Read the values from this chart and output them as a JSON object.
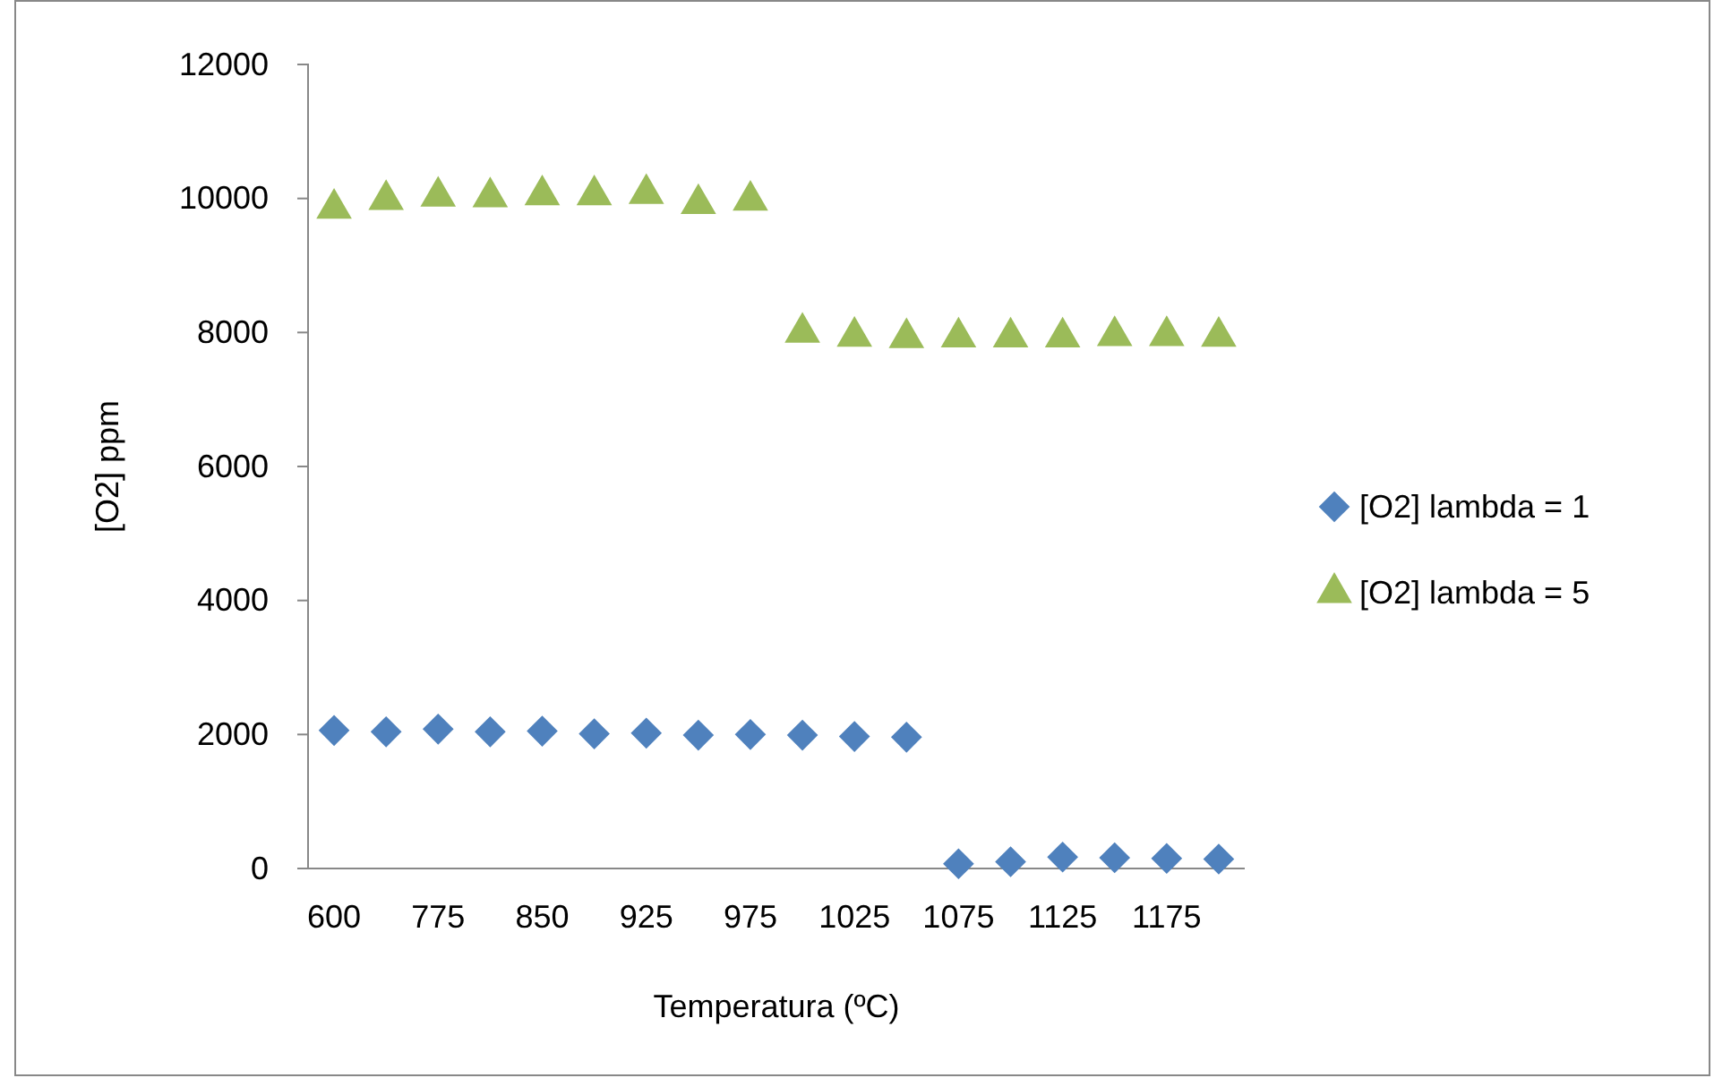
{
  "chart_data": {
    "type": "scatter",
    "xlabel": "Temperatura (ºC)",
    "ylabel": "[O2] ppm",
    "categories": [
      "600",
      null,
      "775",
      null,
      "850",
      null,
      "925",
      null,
      "975",
      null,
      "1025",
      null,
      "1075",
      null,
      "1125",
      null,
      "1175",
      null
    ],
    "ylim": [
      0,
      12000
    ],
    "yticks": [
      0,
      2000,
      4000,
      6000,
      8000,
      10000,
      12000
    ],
    "grid": false,
    "legend": "right",
    "series": [
      {
        "name": "[O2] lambda = 1",
        "color": "#4f81bd",
        "marker": "diamond",
        "values": [
          2060,
          2040,
          2080,
          2040,
          2050,
          2010,
          2020,
          1990,
          2000,
          1990,
          1970,
          1960,
          70,
          100,
          170,
          160,
          150,
          140
        ]
      },
      {
        "name": "[O2] lambda = 5",
        "color": "#9bbb59",
        "marker": "triangle",
        "values": [
          9850,
          9980,
          10030,
          10020,
          10050,
          10050,
          10070,
          9920,
          9970,
          8000,
          7940,
          7920,
          7930,
          7930,
          7930,
          7950,
          7950,
          7940
        ]
      }
    ]
  }
}
